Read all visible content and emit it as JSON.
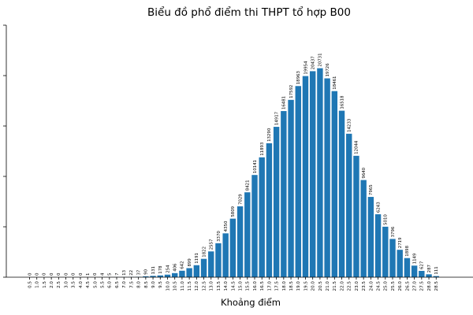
{
  "chart_data": {
    "type": "bar",
    "title": "Biểu đồ phổ điểm thi THPT tổ hợp B00",
    "xlabel": "Khoảng điểm",
    "ylabel": "",
    "ylim": [
      0,
      25000
    ],
    "bar_color": "#1f77b4",
    "categories": [
      "0.5",
      "1.0",
      "1.5",
      "2.0",
      "2.5",
      "3.0",
      "3.5",
      "4.0",
      "4.5",
      "5.0",
      "5.5",
      "6.0",
      "6.5",
      "7.0",
      "7.5",
      "8.0",
      "8.5",
      "9.0",
      "9.5",
      "10.0",
      "10.5",
      "11.0",
      "11.5",
      "12.0",
      "12.5",
      "13.0",
      "13.5",
      "14.0",
      "14.5",
      "15.0",
      "15.5",
      "16.0",
      "16.5",
      "17.0",
      "17.5",
      "18.0",
      "18.5",
      "19.0",
      "19.5",
      "20.0",
      "20.5",
      "21.0",
      "21.5",
      "22.0",
      "22.5",
      "23.0",
      "23.5",
      "24.0",
      "24.5",
      "25.0",
      "25.5",
      "26.0",
      "26.5",
      "27.0",
      "27.5",
      "28.0",
      "28.5"
    ],
    "values": [
      0,
      0,
      0,
      0,
      0,
      0,
      0,
      0,
      1,
      0,
      4,
      5,
      7,
      13,
      22,
      37,
      90,
      131,
      178,
      254,
      406,
      642,
      899,
      1191,
      1822,
      2557,
      3370,
      4350,
      5809,
      7029,
      8421,
      10141,
      11893,
      13290,
      14917,
      16481,
      17592,
      18963,
      19954,
      20437,
      20731,
      19726,
      18461,
      16518,
      14233,
      12044,
      9640,
      7965,
      6243,
      5010,
      3796,
      2719,
      1898,
      1149,
      627,
      287,
      111
    ]
  }
}
